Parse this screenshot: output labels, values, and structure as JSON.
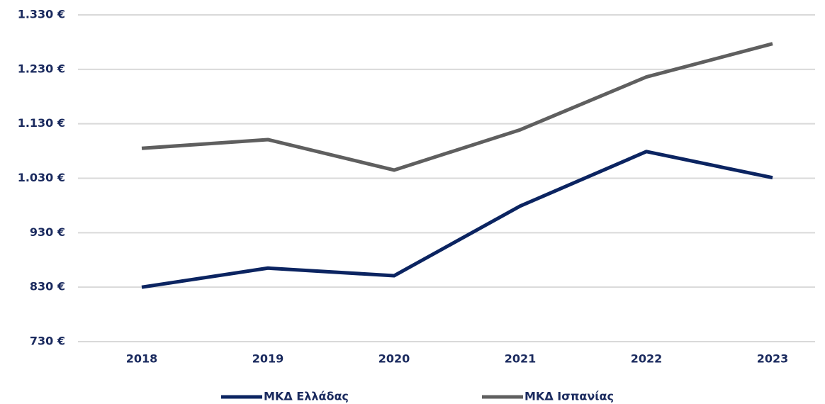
{
  "chart_data": {
    "type": "line",
    "categories": [
      "2018",
      "2019",
      "2020",
      "2021",
      "2022",
      "2023"
    ],
    "series": [
      {
        "name": "ΜΚΔ Ελλάδας",
        "color": "#0b2461",
        "values": [
          830,
          865,
          851,
          979,
          1079,
          1031
        ]
      },
      {
        "name": "ΜΚΔ Ισπανίας",
        "color": "#5f5f5f",
        "values": [
          1085,
          1101,
          1045,
          1119,
          1216,
          1277
        ]
      }
    ],
    "ylim": [
      730,
      1330
    ],
    "yticks": [
      {
        "value": 730,
        "label": "730 €"
      },
      {
        "value": 830,
        "label": "830 €"
      },
      {
        "value": 930,
        "label": "930 €"
      },
      {
        "value": 1030,
        "label": "1.030 €"
      },
      {
        "value": 1130,
        "label": "1.130 €"
      },
      {
        "value": 1230,
        "label": "1.230 €"
      },
      {
        "value": 1330,
        "label": "1.330 €"
      }
    ],
    "grid": true,
    "legend": "bottom"
  }
}
